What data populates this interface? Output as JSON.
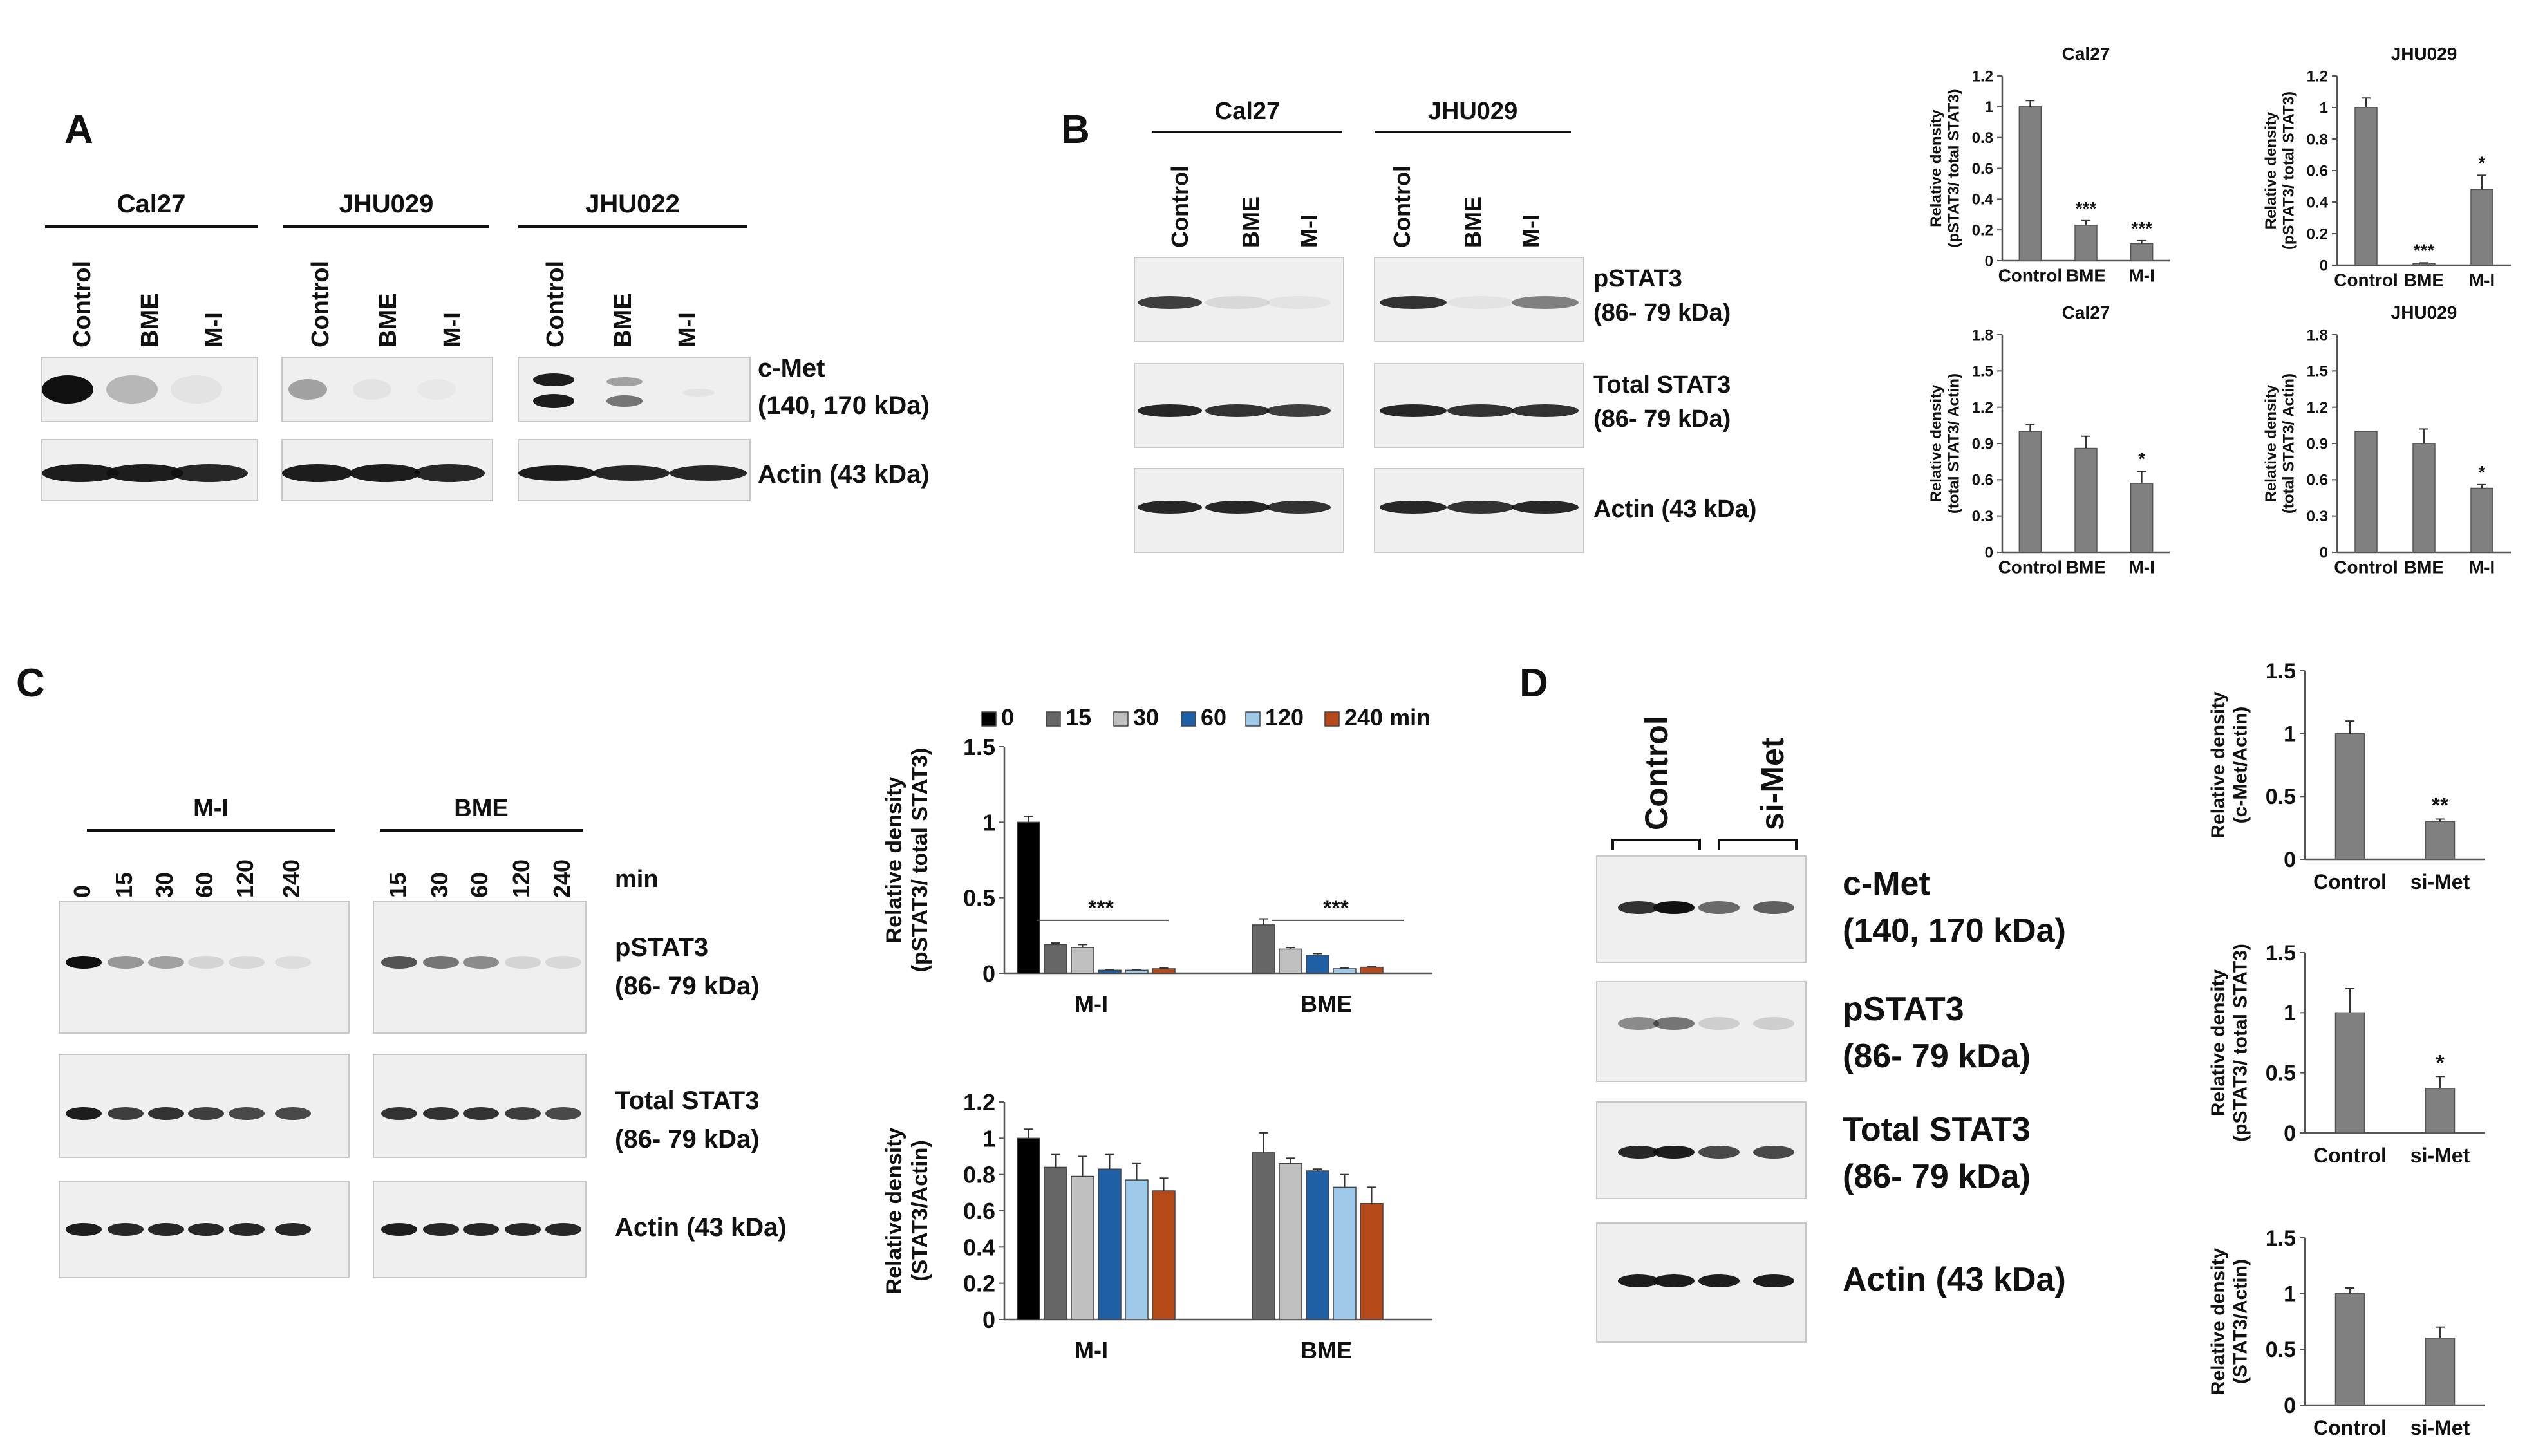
{
  "panels": {
    "A": {
      "letter": "A",
      "groups": [
        {
          "name": "Cal27",
          "lanes": [
            "Control",
            "BME",
            "M-I"
          ]
        },
        {
          "name": "JHU029",
          "lanes": [
            "Control",
            "BME",
            "M-I"
          ]
        },
        {
          "name": "JHU022",
          "lanes": [
            "Control",
            "BME",
            "M-I"
          ]
        }
      ],
      "blots": [
        {
          "label": "c-Met",
          "sublabel": "(140, 170 kDa)"
        },
        {
          "label": "Actin (43 kDa)",
          "sublabel": ""
        }
      ]
    },
    "B": {
      "letter": "B",
      "groups": [
        {
          "name": "Cal27",
          "lanes": [
            "Control",
            "BME",
            "M-I"
          ]
        },
        {
          "name": "JHU029",
          "lanes": [
            "Control",
            "BME",
            "M-I"
          ]
        }
      ],
      "blots": [
        {
          "label": "pSTAT3",
          "sublabel": "(86- 79 kDa)"
        },
        {
          "label": "Total STAT3",
          "sublabel": "(86- 79 kDa)"
        },
        {
          "label": "Actin (43 kDa)",
          "sublabel": ""
        }
      ]
    },
    "C": {
      "letter": "C",
      "groups": [
        {
          "name": "M-I",
          "lanes": [
            "0",
            "15",
            "30",
            "60",
            "120",
            "240"
          ]
        },
        {
          "name": "BME",
          "lanes": [
            "15",
            "30",
            "60",
            "120",
            "240"
          ]
        }
      ],
      "unit": "min",
      "blots": [
        {
          "label": "pSTAT3",
          "sublabel": "(86- 79 kDa)"
        },
        {
          "label": "Total STAT3",
          "sublabel": "(86- 79 kDa)"
        },
        {
          "label": "Actin (43 kDa)",
          "sublabel": ""
        }
      ]
    },
    "D": {
      "letter": "D",
      "groups": [
        {
          "name": "Control"
        },
        {
          "name": "si-Met"
        }
      ],
      "blots": [
        {
          "label": "c-Met",
          "sublabel": "(140, 170 kDa)"
        },
        {
          "label": "pSTAT3",
          "sublabel": "(86- 79 kDa)"
        },
        {
          "label": "Total STAT3",
          "sublabel": "(86- 79 kDa)"
        },
        {
          "label": "Actin (43 kDa)",
          "sublabel": ""
        }
      ]
    }
  },
  "colors": {
    "bar_gray": "#808080",
    "series_0": "#000000",
    "series_15": "#666666",
    "series_30": "#c0c0c0",
    "series_60": "#1f5fa6",
    "series_120": "#9ec9e8",
    "series_240": "#b5491a"
  },
  "chart_data": [
    {
      "type": "bar",
      "title": "Cal27",
      "ylabel": "Relative density",
      "ylabel2": "(pSTAT3/ total STAT3)",
      "categories": [
        "Control",
        "BME",
        "M-I"
      ],
      "values": [
        1.0,
        0.23,
        0.11
      ],
      "errors": [
        0.04,
        0.03,
        0.02
      ],
      "annotations": [
        "",
        "***",
        "***"
      ],
      "yticks": [
        "0",
        "0.2",
        "0.4",
        "0.6",
        "0.8",
        "1",
        "1.2"
      ],
      "ylim": [
        0,
        1.2
      ]
    },
    {
      "type": "bar",
      "title": "JHU029",
      "ylabel": "Relative density",
      "ylabel2": "(pSTAT3/ total STAT3)",
      "categories": [
        "Control",
        "BME",
        "M-I"
      ],
      "values": [
        1.0,
        0.01,
        0.48
      ],
      "errors": [
        0.06,
        0.005,
        0.09
      ],
      "annotations": [
        "",
        "***",
        "*"
      ],
      "yticks": [
        "0",
        "0.2",
        "0.4",
        "0.6",
        "0.8",
        "1",
        "1.2"
      ],
      "ylim": [
        0,
        1.2
      ]
    },
    {
      "type": "bar",
      "title": "Cal27",
      "ylabel": "Relative density",
      "ylabel2": "(total STAT3/ Actin)",
      "categories": [
        "Control",
        "BME",
        "M-I"
      ],
      "values": [
        1.0,
        0.86,
        0.57
      ],
      "errors": [
        0.06,
        0.1,
        0.1
      ],
      "annotations": [
        "",
        "",
        "*"
      ],
      "yticks": [
        "0",
        "0.3",
        "0.6",
        "0.9",
        "1.2",
        "1.5",
        "1.8"
      ],
      "ylim": [
        0,
        1.8
      ]
    },
    {
      "type": "bar",
      "title": "JHU029",
      "ylabel": "Relative density",
      "ylabel2": "(total STAT3/ Actin)",
      "categories": [
        "Control",
        "BME",
        "M-I"
      ],
      "values": [
        1.0,
        0.9,
        0.53
      ],
      "errors": [
        0.0,
        0.12,
        0.03
      ],
      "annotations": [
        "",
        "",
        "*"
      ],
      "yticks": [
        "0",
        "0.3",
        "0.6",
        "0.9",
        "1.2",
        "1.5",
        "1.8"
      ],
      "ylim": [
        0,
        1.8
      ]
    },
    {
      "type": "bar",
      "title": "",
      "ylabel": "Relative density",
      "ylabel2": "(pSTAT3/ total STAT3)",
      "categories": [
        "M-I",
        "BME"
      ],
      "legend_unit": "min",
      "series": [
        {
          "name": "0",
          "values": [
            1.0,
            null
          ],
          "errors": [
            0.04,
            null
          ]
        },
        {
          "name": "15",
          "values": [
            0.19,
            0.32
          ],
          "errors": [
            0.01,
            0.04
          ]
        },
        {
          "name": "30",
          "values": [
            0.17,
            0.16
          ],
          "errors": [
            0.02,
            0.01
          ]
        },
        {
          "name": "60",
          "values": [
            0.02,
            0.12
          ],
          "errors": [
            0.005,
            0.01
          ]
        },
        {
          "name": "120",
          "values": [
            0.02,
            0.03
          ],
          "errors": [
            0.005,
            0.005
          ]
        },
        {
          "name": "240",
          "values": [
            0.03,
            0.04
          ],
          "errors": [
            0.005,
            0.005
          ]
        }
      ],
      "annotations": [
        "***",
        "***"
      ],
      "yticks": [
        "0",
        "0.5",
        "1",
        "1.5"
      ],
      "ylim": [
        0,
        1.5
      ]
    },
    {
      "type": "bar",
      "title": "",
      "ylabel": "Relative density",
      "ylabel2": "(STAT3/Actin)",
      "categories": [
        "M-I",
        "BME"
      ],
      "series": [
        {
          "name": "0",
          "values": [
            1.0,
            null
          ],
          "errors": [
            0.05,
            null
          ]
        },
        {
          "name": "15",
          "values": [
            0.84,
            0.92
          ],
          "errors": [
            0.07,
            0.11
          ]
        },
        {
          "name": "30",
          "values": [
            0.79,
            0.86
          ],
          "errors": [
            0.11,
            0.03
          ]
        },
        {
          "name": "60",
          "values": [
            0.83,
            0.82
          ],
          "errors": [
            0.08,
            0.01
          ]
        },
        {
          "name": "120",
          "values": [
            0.77,
            0.73
          ],
          "errors": [
            0.09,
            0.07
          ]
        },
        {
          "name": "240",
          "values": [
            0.71,
            0.64
          ],
          "errors": [
            0.07,
            0.09
          ]
        }
      ],
      "yticks": [
        "0",
        "0.2",
        "0.4",
        "0.6",
        "0.8",
        "1",
        "1.2"
      ],
      "ylim": [
        0,
        1.2
      ]
    },
    {
      "type": "bar",
      "title": "",
      "ylabel": "Relative density",
      "ylabel2": "(c-Met/Actin)",
      "categories": [
        "Control",
        "si-Met"
      ],
      "values": [
        1.0,
        0.3
      ],
      "errors": [
        0.1,
        0.02
      ],
      "annotations": [
        "",
        "**"
      ],
      "yticks": [
        "0",
        "0.5",
        "1",
        "1.5"
      ],
      "ylim": [
        0,
        1.5
      ]
    },
    {
      "type": "bar",
      "title": "",
      "ylabel": "Relative density",
      "ylabel2": "(pSTAT3/ total STAT3)",
      "categories": [
        "Control",
        "si-Met"
      ],
      "values": [
        1.0,
        0.37
      ],
      "errors": [
        0.2,
        0.1
      ],
      "annotations": [
        "",
        "*"
      ],
      "yticks": [
        "0",
        "0.5",
        "1",
        "1.5"
      ],
      "ylim": [
        0,
        1.5
      ]
    },
    {
      "type": "bar",
      "title": "",
      "ylabel": "Relative density",
      "ylabel2": "(STAT3/Actin)",
      "categories": [
        "Control",
        "si-Met"
      ],
      "values": [
        1.0,
        0.6
      ],
      "errors": [
        0.05,
        0.1
      ],
      "annotations": [
        "",
        ""
      ],
      "yticks": [
        "0",
        "0.5",
        "1",
        "1.5"
      ],
      "ylim": [
        0,
        1.5
      ]
    }
  ]
}
